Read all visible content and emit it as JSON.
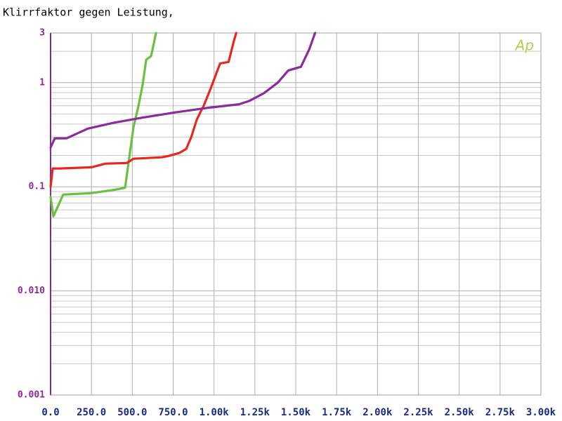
{
  "chart_data": {
    "type": "line",
    "title": "Klirrfaktor gegen Leistung,",
    "logo": "Ap",
    "log_y": true,
    "grid": true,
    "xlim": [
      0,
      3000
    ],
    "xticks": [
      {
        "value": 0,
        "label": "0.0"
      },
      {
        "value": 250,
        "label": "250.0"
      },
      {
        "value": 500,
        "label": "500.0"
      },
      {
        "value": 750,
        "label": "750.0"
      },
      {
        "value": 1000,
        "label": "1.00k"
      },
      {
        "value": 1250,
        "label": "1.25k"
      },
      {
        "value": 1500,
        "label": "1.50k"
      },
      {
        "value": 1750,
        "label": "1.75k"
      },
      {
        "value": 2000,
        "label": "2.00k"
      },
      {
        "value": 2250,
        "label": "2.25k"
      },
      {
        "value": 2500,
        "label": "2.50k"
      },
      {
        "value": 2750,
        "label": "2.75k"
      },
      {
        "value": 3000,
        "label": "3.00k"
      }
    ],
    "ylim": [
      0.001,
      3
    ],
    "yticks": [
      {
        "value": 0.001,
        "label": "0.001"
      },
      {
        "value": 0.01,
        "label": "0.010"
      },
      0.1,
      1,
      3
    ],
    "y_minor_ticks": [
      0.002,
      0.003,
      0.004,
      0.005,
      0.006,
      0.007,
      0.008,
      0.009,
      0.02,
      0.03,
      0.04,
      0.05,
      0.06,
      0.07,
      0.08,
      0.09,
      0.2,
      0.3,
      0.4,
      0.5,
      0.6,
      0.7,
      0.8,
      0.9,
      2
    ],
    "series": [
      {
        "color": "#6cc040",
        "x": [
          0,
          17,
          77,
          250,
          400,
          456,
          478,
          508,
          538,
          564,
          585,
          615,
          645
        ],
        "values": [
          0.08,
          0.052,
          0.084,
          0.087,
          0.094,
          0.098,
          0.175,
          0.38,
          0.6,
          0.97,
          1.66,
          1.8,
          3
        ]
      },
      {
        "color": "#e8281e",
        "x": [
          0,
          13,
          56,
          250,
          336,
          465,
          508,
          680,
          723,
          787,
          830,
          861,
          895,
          938,
          981,
          1037,
          1089,
          1119,
          1136
        ],
        "values": [
          0.1,
          0.15,
          0.15,
          0.154,
          0.167,
          0.169,
          0.186,
          0.192,
          0.198,
          0.211,
          0.231,
          0.301,
          0.443,
          0.605,
          0.89,
          1.53,
          1.58,
          2.44,
          3
        ]
      },
      {
        "color": "#8b2a9a",
        "x": [
          0,
          26,
          99,
          163,
          228,
          379,
          551,
          766,
          981,
          1153,
          1218,
          1304,
          1390,
          1454,
          1532,
          1583,
          1618
        ],
        "values": [
          0.238,
          0.292,
          0.292,
          0.325,
          0.362,
          0.41,
          0.458,
          0.519,
          0.578,
          0.62,
          0.67,
          0.79,
          1.0,
          1.31,
          1.42,
          2.1,
          3
        ]
      }
    ]
  }
}
